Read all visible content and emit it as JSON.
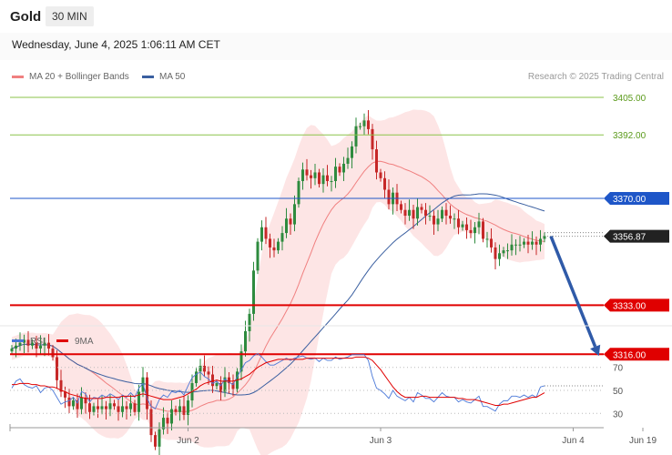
{
  "header": {
    "title": "Gold",
    "interval": "30 MIN"
  },
  "timestamp": "Wednesday, June 4, 2025 1:06:11 AM CET",
  "legend": {
    "ma20": "MA 20 + Bollinger Bands",
    "ma50": "MA 50",
    "credit": "Research © 2025 Trading Central"
  },
  "rsi_legend": {
    "rsi": "RSI",
    "ma9": "9MA"
  },
  "colors": {
    "ma20": "#f08080",
    "ma50": "#3a5fa0",
    "up": "#2e8b3e",
    "down": "#c62828",
    "bollinger": "#fde0e0",
    "resistance_green": "#8bc34a",
    "pivot_blue": "#1e56c8",
    "support_red": "#e00000",
    "rsi": "#4a78d8",
    "rsi_ma": "#e00000",
    "price_box": "#222222",
    "forecast_arrow": "#2f5aa8"
  },
  "chart_data": {
    "type": "candlestick",
    "price_range": [
      3275,
      3415
    ],
    "levels": [
      {
        "label": "3405.00",
        "value": 3405.0,
        "style": "resistance-thin"
      },
      {
        "label": "3392.00",
        "value": 3392.0,
        "style": "resistance-thin"
      },
      {
        "label": "3370.00",
        "value": 3370.0,
        "style": "pivot"
      },
      {
        "label": "3356.87",
        "value": 3356.87,
        "style": "last-price"
      },
      {
        "label": "3333.00",
        "value": 3333.0,
        "style": "support"
      },
      {
        "label": "3316.00",
        "value": 3316.0,
        "style": "support"
      }
    ],
    "x_ticks": [
      {
        "label": "Jun 2",
        "index": 43
      },
      {
        "label": "Jun 3",
        "index": 90
      },
      {
        "label": "Jun 4",
        "index": 137
      },
      {
        "label": "Jun 19",
        "index": 154
      }
    ],
    "forecast": {
      "from_value": 3356.87,
      "to_value": 3316.0
    },
    "close": [
      3318,
      3319,
      3320,
      3321,
      3319,
      3320,
      3318,
      3319,
      3320,
      3318,
      3315,
      3307,
      3303,
      3301,
      3298,
      3300,
      3297,
      3301,
      3299,
      3296,
      3298,
      3297,
      3298,
      3297,
      3299,
      3298,
      3296,
      3298,
      3297,
      3299,
      3296,
      3303,
      3308,
      3297,
      3288,
      3284,
      3290,
      3294,
      3292,
      3297,
      3296,
      3298,
      3295,
      3300,
      3306,
      3310,
      3312,
      3310,
      3309,
      3305,
      3306,
      3303,
      3308,
      3306,
      3304,
      3310,
      3317,
      3324,
      3330,
      3345,
      3355,
      3360,
      3356,
      3353,
      3352,
      3355,
      3358,
      3363,
      3361,
      3368,
      3376,
      3380,
      3378,
      3377,
      3379,
      3375,
      3378,
      3376,
      3376,
      3381,
      3379,
      3382,
      3384,
      3388,
      3395,
      3395,
      3397,
      3394,
      3387,
      3379,
      3377,
      3373,
      3368,
      3372,
      3368,
      3366,
      3364,
      3366,
      3363,
      3367,
      3366,
      3364,
      3364,
      3361,
      3363,
      3366,
      3364,
      3363,
      3363,
      3360,
      3361,
      3359,
      3358,
      3360,
      3362,
      3356,
      3356,
      3353,
      3349,
      3351,
      3352,
      3352,
      3354,
      3354,
      3354,
      3355,
      3354,
      3355,
      3354,
      3356,
      3357
    ]
  },
  "rsi_chart": {
    "type": "line",
    "y_ticks": [
      "70",
      "50",
      "30"
    ],
    "y_values": [
      70,
      50,
      30
    ],
    "y_range": [
      20,
      85
    ],
    "rsi": [
      52,
      58,
      60,
      55,
      53,
      52,
      54,
      48,
      52,
      53,
      50,
      44,
      38,
      40,
      41,
      44,
      39,
      49,
      47,
      40,
      44,
      43,
      46,
      44,
      47,
      45,
      42,
      46,
      44,
      48,
      44,
      52,
      56,
      43,
      36,
      34,
      42,
      46,
      44,
      49,
      48,
      50,
      46,
      54,
      61,
      64,
      66,
      62,
      60,
      56,
      58,
      54,
      60,
      57,
      55,
      62,
      68,
      74,
      76,
      80,
      82,
      79,
      75,
      72,
      72,
      74,
      76,
      78,
      76,
      78,
      79,
      80,
      78,
      77,
      78,
      75,
      78,
      76,
      76,
      79,
      77,
      78,
      79,
      81,
      81,
      81,
      81,
      76,
      62,
      52,
      50,
      47,
      43,
      50,
      45,
      43,
      41,
      44,
      40,
      48,
      46,
      43,
      43,
      40,
      44,
      48,
      45,
      44,
      44,
      40,
      42,
      40,
      39,
      42,
      45,
      36,
      36,
      34,
      32,
      38,
      41,
      41,
      45,
      45,
      44,
      46,
      44,
      46,
      44,
      53,
      54
    ],
    "rsi_ma": [
      55,
      55,
      56,
      56,
      56,
      55,
      55,
      54,
      54,
      53,
      53,
      52,
      50,
      49,
      47,
      46,
      45,
      44,
      43,
      43,
      43,
      43,
      43,
      44,
      44,
      44,
      44,
      45,
      45,
      45,
      45,
      46,
      47,
      46,
      45,
      44,
      43,
      42,
      42,
      42,
      43,
      44,
      45,
      47,
      49,
      51,
      54,
      56,
      57,
      58,
      59,
      58,
      58,
      58,
      58,
      59,
      60,
      62,
      64,
      67,
      70,
      72,
      74,
      75,
      76,
      77,
      77,
      77,
      77,
      77,
      77,
      77,
      78,
      78,
      78,
      78,
      78,
      78,
      78,
      78,
      78,
      78,
      78,
      78,
      79,
      79,
      79,
      78,
      76,
      72,
      68,
      63,
      58,
      53,
      49,
      46,
      44,
      44,
      44,
      44,
      45,
      45,
      44,
      44,
      44,
      44,
      44,
      44,
      44,
      43,
      43,
      42,
      42,
      42,
      41,
      40,
      39,
      38,
      37,
      37,
      38,
      38,
      39,
      40,
      41,
      42,
      43,
      44,
      44,
      46,
      48
    ]
  }
}
